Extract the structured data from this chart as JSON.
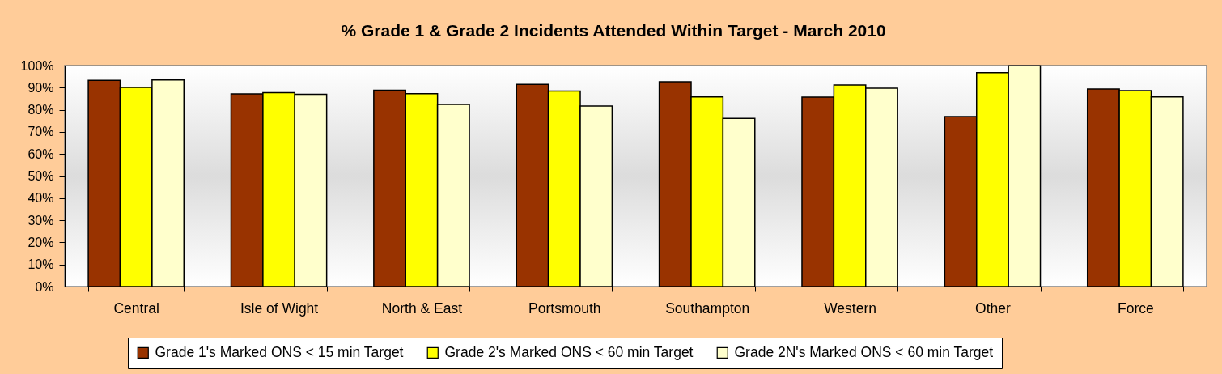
{
  "chart_data": {
    "type": "bar",
    "title": "% Grade 1 & Grade 2 Incidents Attended Within Target - March 2010",
    "categories": [
      "Central",
      "Isle of Wight",
      "North & East",
      "Portsmouth",
      "Southampton",
      "Western",
      "Other",
      "Force"
    ],
    "series": [
      {
        "name": "Grade 1's Marked ONS < 15 min Target",
        "color": "#993300",
        "values": [
          93.3,
          87.2,
          88.8,
          91.5,
          92.7,
          85.7,
          76.9,
          89.4
        ]
      },
      {
        "name": "Grade 2's Marked ONS < 60 min Target",
        "color": "#ffff00",
        "values": [
          90.1,
          87.7,
          87.3,
          88.5,
          85.8,
          91.2,
          96.8,
          88.6
        ]
      },
      {
        "name": "Grade 2N's Marked ONS < 60 min Target",
        "color": "#ffffcc",
        "values": [
          93.5,
          87.0,
          82.4,
          81.7,
          76.1,
          89.7,
          99.9,
          85.8
        ]
      }
    ],
    "ylim": [
      0,
      100
    ],
    "yticks": [
      {
        "value": 0,
        "label": "0%"
      },
      {
        "value": 10,
        "label": "10%"
      },
      {
        "value": 20,
        "label": "20%"
      },
      {
        "value": 30,
        "label": "30%"
      },
      {
        "value": 40,
        "label": "40%"
      },
      {
        "value": 50,
        "label": "50%"
      },
      {
        "value": 60,
        "label": "60%"
      },
      {
        "value": 70,
        "label": "70%"
      },
      {
        "value": 80,
        "label": "80%"
      },
      {
        "value": 90,
        "label": "90%"
      },
      {
        "value": 100,
        "label": "100%"
      }
    ],
    "grid": false,
    "legend": "bottom"
  }
}
